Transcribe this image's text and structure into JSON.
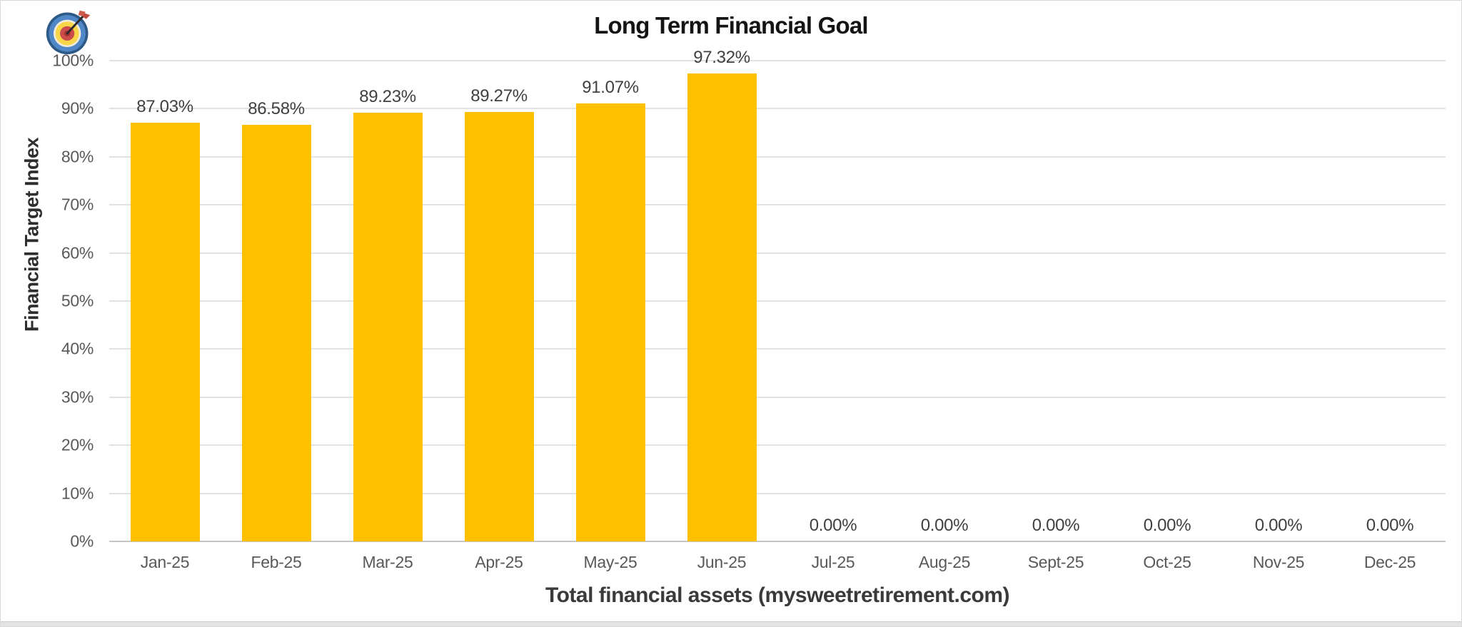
{
  "chart_data": {
    "type": "bar",
    "title": "Long Term Financial Goal",
    "xlabel": "Total financial assets (mysweetretirement.com)",
    "ylabel": "Financial Target Index",
    "categories": [
      "Jan-25",
      "Feb-25",
      "Mar-25",
      "Apr-25",
      "May-25",
      "Jun-25",
      "Jul-25",
      "Aug-25",
      "Sept-25",
      "Oct-25",
      "Nov-25",
      "Dec-25"
    ],
    "values": [
      87.03,
      86.58,
      89.23,
      89.27,
      91.07,
      97.32,
      0,
      0,
      0,
      0,
      0,
      0
    ],
    "data_labels": [
      "87.03%",
      "86.58%",
      "89.23%",
      "89.27%",
      "91.07%",
      "97.32%",
      "0.00%",
      "0.00%",
      "0.00%",
      "0.00%",
      "0.00%",
      "0.00%"
    ],
    "y_ticks": [
      "100%",
      "90%",
      "80%",
      "70%",
      "60%",
      "50%",
      "40%",
      "30%",
      "20%",
      "10%",
      "0%"
    ],
    "ylim": [
      0,
      100
    ],
    "grid": true,
    "legend": "none",
    "bar_color": "#FFC000",
    "gridline_color": "#E2E2E2",
    "axis_line_color": "#C6C6C6",
    "tick_label_color": "#595959",
    "data_label_color": "#404040"
  },
  "icons": {
    "target_icon": "bullseye-dartboard-with-dart"
  }
}
